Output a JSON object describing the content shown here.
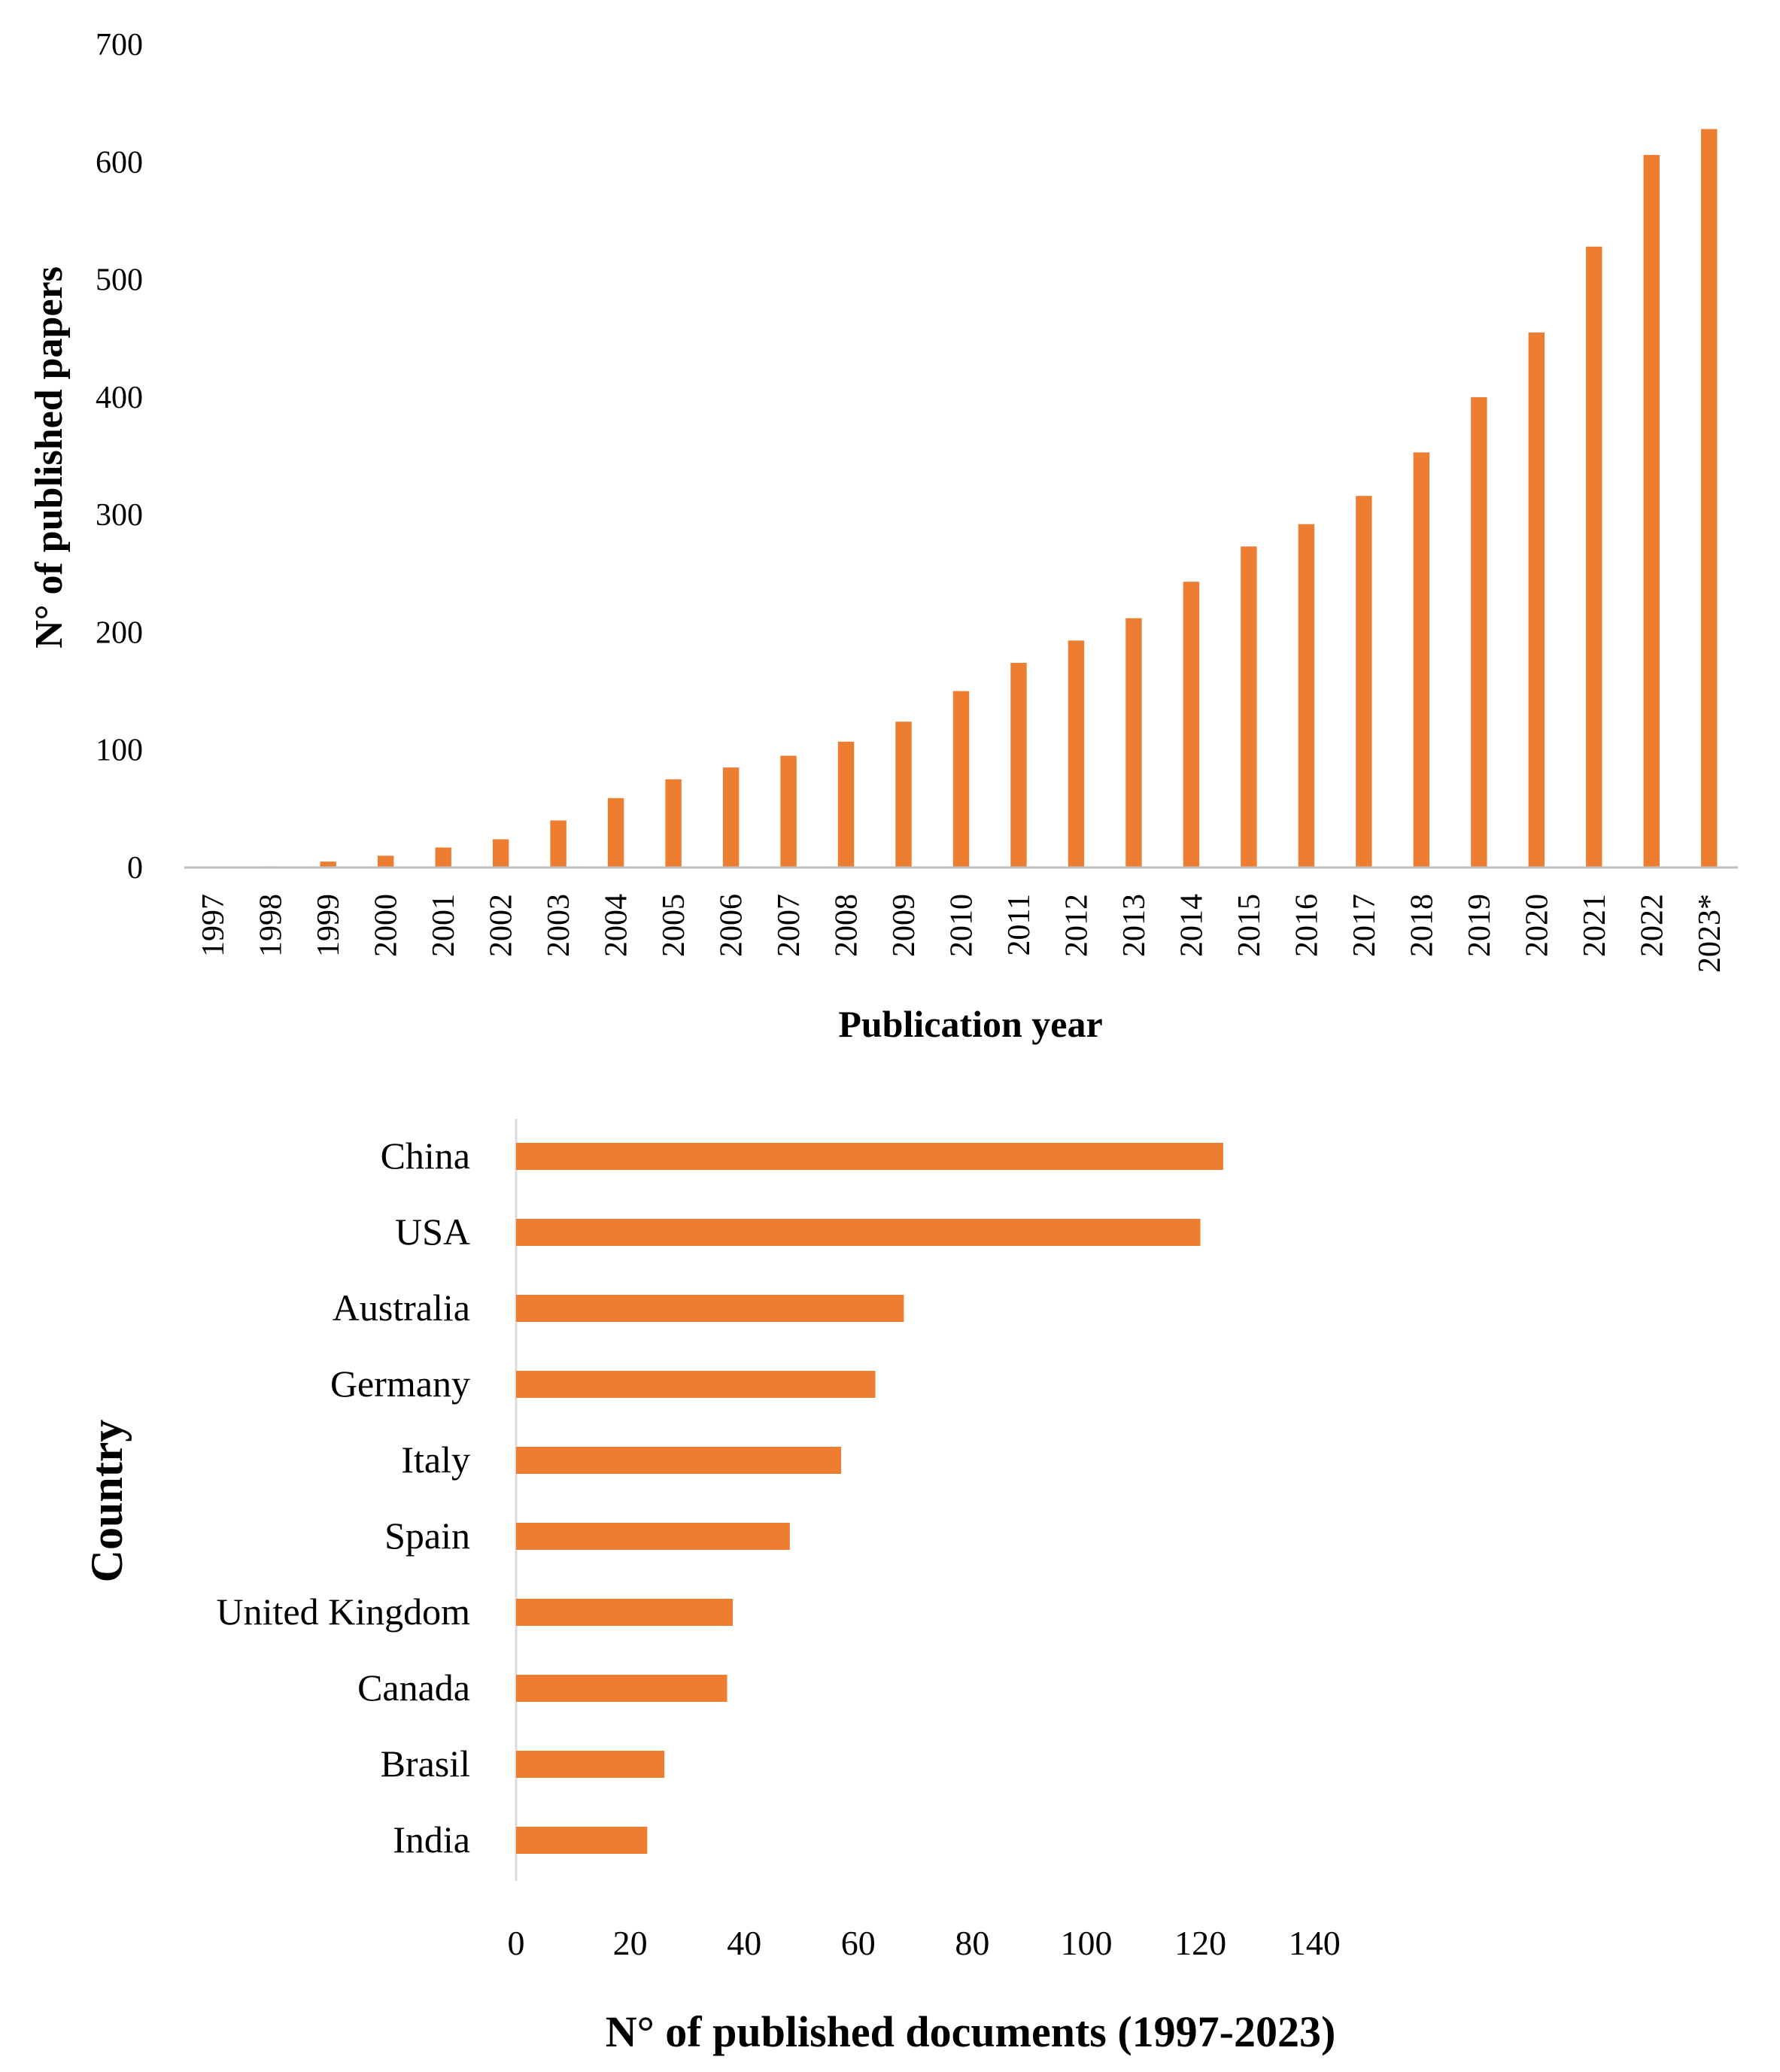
{
  "accent_color": "#ED7D31",
  "chart_data": [
    {
      "type": "bar",
      "orientation": "vertical",
      "title": "",
      "xlabel": "Publication year",
      "ylabel": "N° of published papers",
      "ylim": [
        0,
        700
      ],
      "yticks": [
        "0",
        "100",
        "200",
        "300",
        "400",
        "500",
        "600",
        "700"
      ],
      "categories": [
        "1997",
        "1998",
        "1999",
        "2000",
        "2001",
        "2002",
        "2003",
        "2004",
        "2005",
        "2006",
        "2007",
        "2008",
        "2009",
        "2010",
        "2011",
        "2012",
        "2013",
        "2014",
        "2015",
        "2016",
        "2017",
        "2018",
        "2019",
        "2020",
        "2021",
        "2022",
        "2023*"
      ],
      "values": [
        0,
        1,
        5,
        10,
        17,
        24,
        40,
        59,
        75,
        85,
        95,
        107,
        124,
        150,
        174,
        193,
        212,
        243,
        273,
        292,
        316,
        353,
        400,
        455,
        528,
        606,
        628
      ],
      "grid": false,
      "color": "#ED7D31"
    },
    {
      "type": "bar",
      "orientation": "horizontal",
      "title": "",
      "xlabel": "N° of published documents (1997-2023)",
      "ylabel": "Country",
      "xlim": [
        0,
        150
      ],
      "xticks": [
        "0",
        "20",
        "40",
        "60",
        "80",
        "100",
        "120",
        "140"
      ],
      "categories": [
        "China",
        "USA",
        "Australia",
        "Germany",
        "Italy",
        "Spain",
        "United Kingdom",
        "Canada",
        "Brasil",
        "India"
      ],
      "values": [
        124,
        120,
        68,
        63,
        57,
        48,
        38,
        37,
        26,
        23
      ],
      "grid": false,
      "color": "#ED7D31"
    }
  ]
}
